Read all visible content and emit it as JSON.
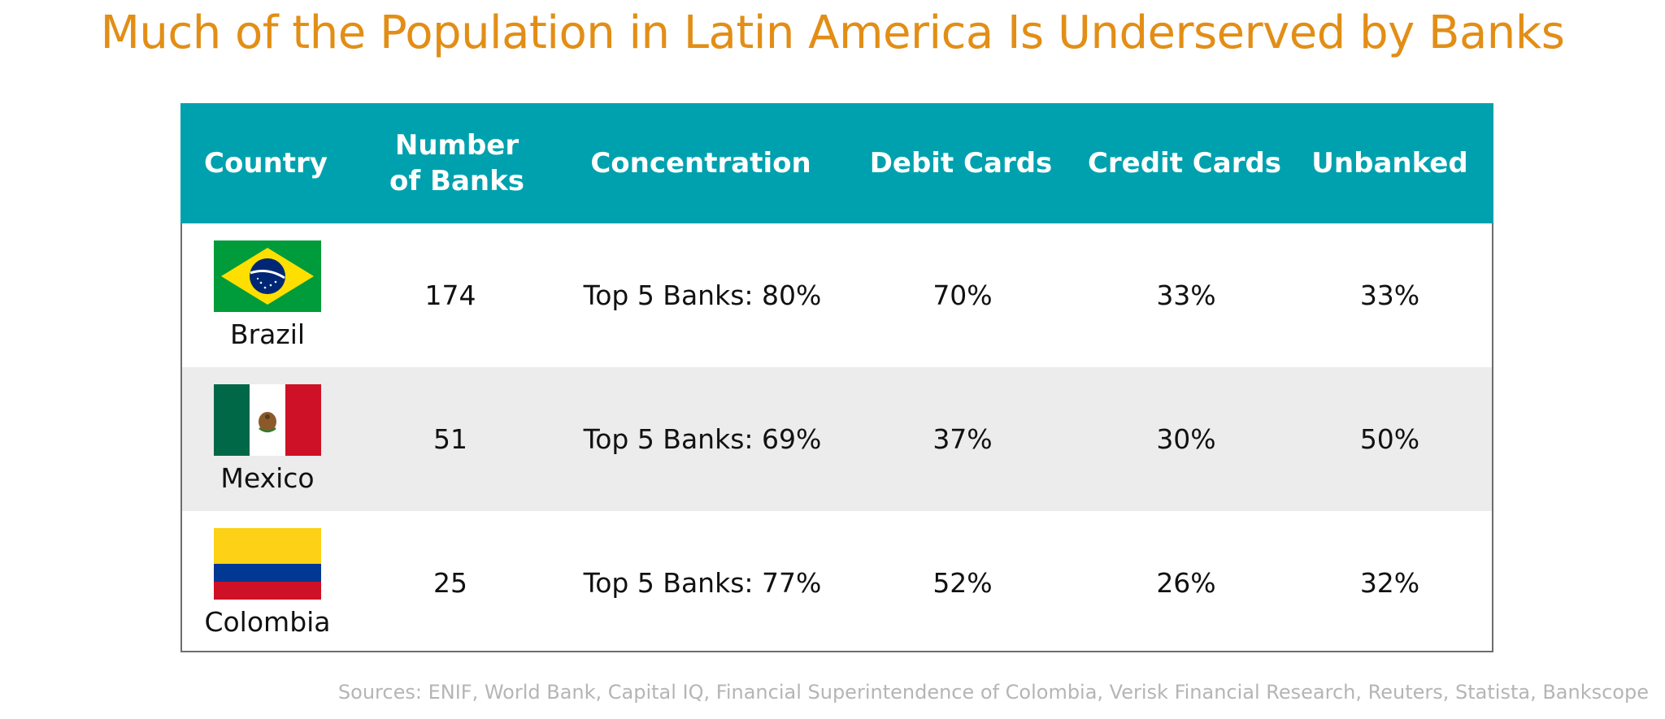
{
  "title": "Much of the Population in Latin America Is Underserved by Banks",
  "sources": "Sources: ENIF, World Bank, Capital IQ, Financial Superintendence of Colombia, Verisk Financial Research, Reuters, Statista, Bankscope",
  "colors": {
    "title": "#e28e16",
    "header_bg": "#00a1ae",
    "alt_row_bg": "#ececec",
    "border": "#6d6d6d",
    "sources": "#b5b5b5"
  },
  "chart_data": {
    "type": "table",
    "title": "Much of the Population in Latin America Is Underserved by Banks",
    "columns": [
      "Country",
      "Number of Banks",
      "Concentration",
      "Debit Cards",
      "Credit Cards",
      "Unbanked"
    ],
    "header_lines": [
      [
        "Country"
      ],
      [
        "Number",
        "of Banks"
      ],
      [
        "Concentration"
      ],
      [
        "Debit Cards"
      ],
      [
        "Credit Cards"
      ],
      [
        "Unbanked"
      ]
    ],
    "rows": [
      {
        "country": "Brazil",
        "flag": "brazil-flag-icon",
        "banks": "174",
        "concentration": "Top 5 Banks: 80%",
        "debit": "70%",
        "credit": "33%",
        "unbanked": "33%"
      },
      {
        "country": "Mexico",
        "flag": "mexico-flag-icon",
        "banks": "51",
        "concentration": "Top 5 Banks: 69%",
        "debit": "37%",
        "credit": "30%",
        "unbanked": "50%"
      },
      {
        "country": "Colombia",
        "flag": "colombia-flag-icon",
        "banks": "25",
        "concentration": "Top 5 Banks: 77%",
        "debit": "52%",
        "credit": "26%",
        "unbanked": "32%"
      }
    ]
  }
}
